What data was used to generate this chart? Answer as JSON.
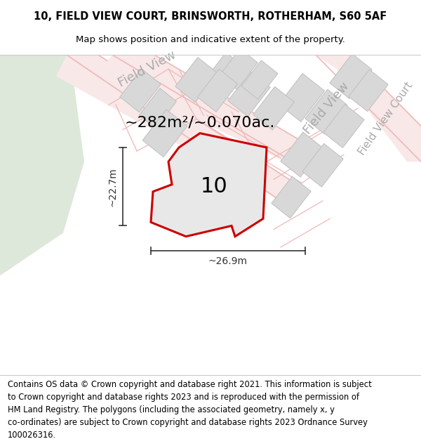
{
  "title_line1": "10, FIELD VIEW COURT, BRINSWORTH, ROTHERHAM, S60 5AF",
  "title_line2": "Map shows position and indicative extent of the property.",
  "footer_text": "Contains OS data © Crown copyright and database right 2021. This information is subject\nto Crown copyright and database rights 2023 and is reproduced with the permission of\nHM Land Registry. The polygons (including the associated geometry, namely x, y\nco-ordinates) are subject to Crown copyright and database rights 2023 Ordnance Survey\n100026316.",
  "area_label": "~282m²/~0.070ac.",
  "number_label": "10",
  "dim_width": "~26.9m",
  "dim_height": "~22.7m",
  "street_label_top": "Field View",
  "street_label_right": "Field View",
  "street_label_br": "Field View Court",
  "map_bg": "#f0f2ef",
  "map_bg_left": "#e2eade",
  "road_line_color": "#f0b8b8",
  "road_fill_color": "#f8e8e8",
  "block_fill": "#d8d8d8",
  "block_edge": "#c0c0c0",
  "fvc_road_fill": "#e8e8e8",
  "fvc_road_edge": "#c8c8c8",
  "plot_fill": "#e8e8e8",
  "plot_edge": "#cc0000",
  "dim_color": "#333333",
  "title_fontsize": 10.5,
  "subtitle_fontsize": 9.5,
  "area_fontsize": 16,
  "number_fontsize": 22,
  "street_fontsize": 13,
  "footer_fontsize": 8.3,
  "road_lw": 1.2,
  "block_lw": 0.7
}
